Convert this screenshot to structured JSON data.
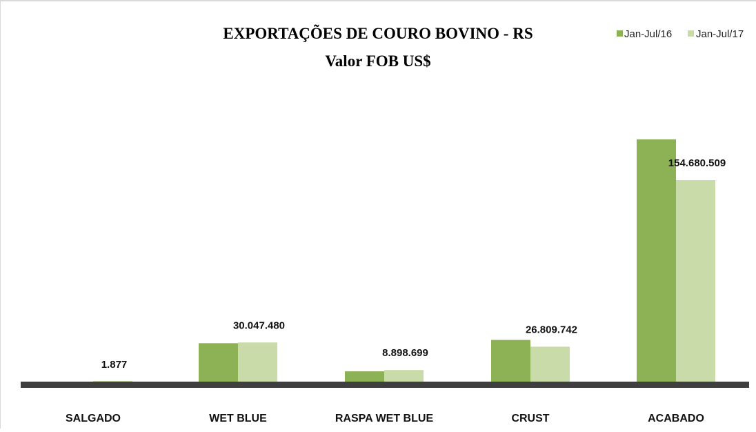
{
  "chart_data": {
    "type": "bar",
    "title": "EXPORTAÇÕES  DE COURO BOVINO  - RS",
    "subtitle": "Valor  FOB US$",
    "categories": [
      "SALGADO",
      "WET BLUE",
      "RASPA WET BLUE",
      "CRUST",
      "ACABADO"
    ],
    "series": [
      {
        "name": "Jan-Jul/16",
        "values": [
          0,
          29500000,
          7900000,
          32000000,
          186000000
        ],
        "color": "#8db255"
      },
      {
        "name": "Jan-Jul/17",
        "values": [
          1877,
          30047480,
          8898699,
          26809742,
          154680509
        ],
        "color": "#c9dba8"
      }
    ],
    "data_labels": [
      "1.877",
      "30.047.480",
      "8.898.699",
      "26.809.742",
      "154.680.509"
    ],
    "ylim": [
      0,
      240000000
    ],
    "legend_position": "top-right",
    "grid": false
  }
}
